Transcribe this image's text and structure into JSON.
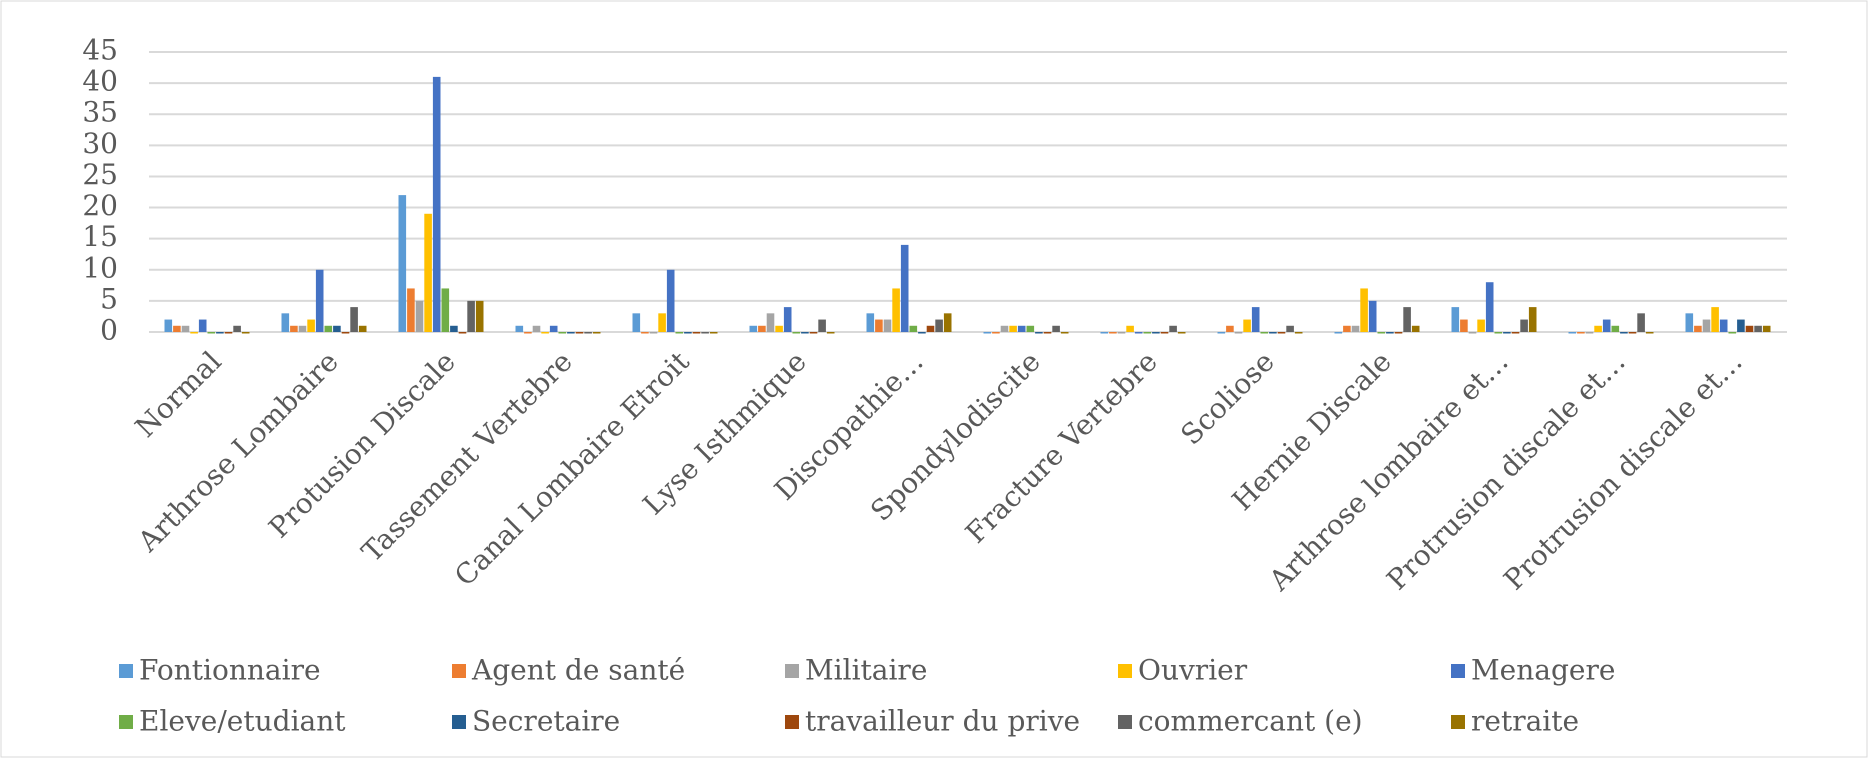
{
  "chart_data": {
    "type": "bar",
    "categories": [
      "Normal",
      "Arthrose Lombaire",
      "Protusion Discale",
      "Tassement Vertebre",
      "Canal Lombaire Etroit",
      "Lyse Isthmique",
      "Discopathie…",
      "Spondylodiscite",
      "Fracture Vertebre",
      "Scoliose",
      "Hernie Discale",
      "Arthrose lombaire et…",
      "Protrusion discale et…",
      "Protrusion discale et…"
    ],
    "series": [
      {
        "name": "Fontionnaire",
        "color": "#5b9bd5",
        "values": [
          2,
          3,
          22,
          1,
          3,
          1,
          3,
          0,
          0,
          0,
          0,
          4,
          0,
          3
        ]
      },
      {
        "name": "Agent de santé",
        "color": "#ed7d31",
        "values": [
          1,
          1,
          7,
          0,
          0,
          1,
          2,
          0,
          0,
          1,
          1,
          2,
          0,
          1
        ]
      },
      {
        "name": "Militaire",
        "color": "#a5a5a5",
        "values": [
          1,
          1,
          5,
          1,
          0,
          3,
          2,
          1,
          0,
          0,
          1,
          0,
          0,
          2
        ]
      },
      {
        "name": "Ouvrier",
        "color": "#ffc000",
        "values": [
          0,
          2,
          19,
          0,
          3,
          1,
          7,
          1,
          1,
          2,
          7,
          2,
          1,
          4
        ]
      },
      {
        "name": "Menagere",
        "color": "#4472c4",
        "values": [
          2,
          10,
          41,
          1,
          10,
          4,
          14,
          1,
          0,
          4,
          5,
          8,
          2,
          2
        ]
      },
      {
        "name": "Eleve/etudiant",
        "color": "#70ad47",
        "values": [
          0,
          1,
          7,
          0,
          0,
          0,
          1,
          1,
          0,
          0,
          0,
          0,
          1,
          0
        ]
      },
      {
        "name": "Secretaire",
        "color": "#255e91",
        "values": [
          0,
          1,
          1,
          0,
          0,
          0,
          0,
          0,
          0,
          0,
          0,
          0,
          0,
          2
        ]
      },
      {
        "name": "travailleur du prive",
        "color": "#9e480e",
        "values": [
          0,
          0,
          0,
          0,
          0,
          0,
          1,
          0,
          0,
          0,
          0,
          0,
          0,
          1
        ]
      },
      {
        "name": "commercant (e)",
        "color": "#636363",
        "values": [
          1,
          4,
          5,
          0,
          0,
          2,
          2,
          1,
          1,
          1,
          4,
          2,
          3,
          1
        ]
      },
      {
        "name": "retraite",
        "color": "#997300",
        "values": [
          0,
          1,
          5,
          0,
          0,
          0,
          3,
          0,
          0,
          0,
          1,
          4,
          0,
          1
        ]
      }
    ],
    "ylim": [
      0,
      45
    ],
    "yticks": [
      0,
      5,
      10,
      15,
      20,
      25,
      30,
      35,
      40,
      45
    ],
    "grid": true,
    "legend": "bottom"
  }
}
